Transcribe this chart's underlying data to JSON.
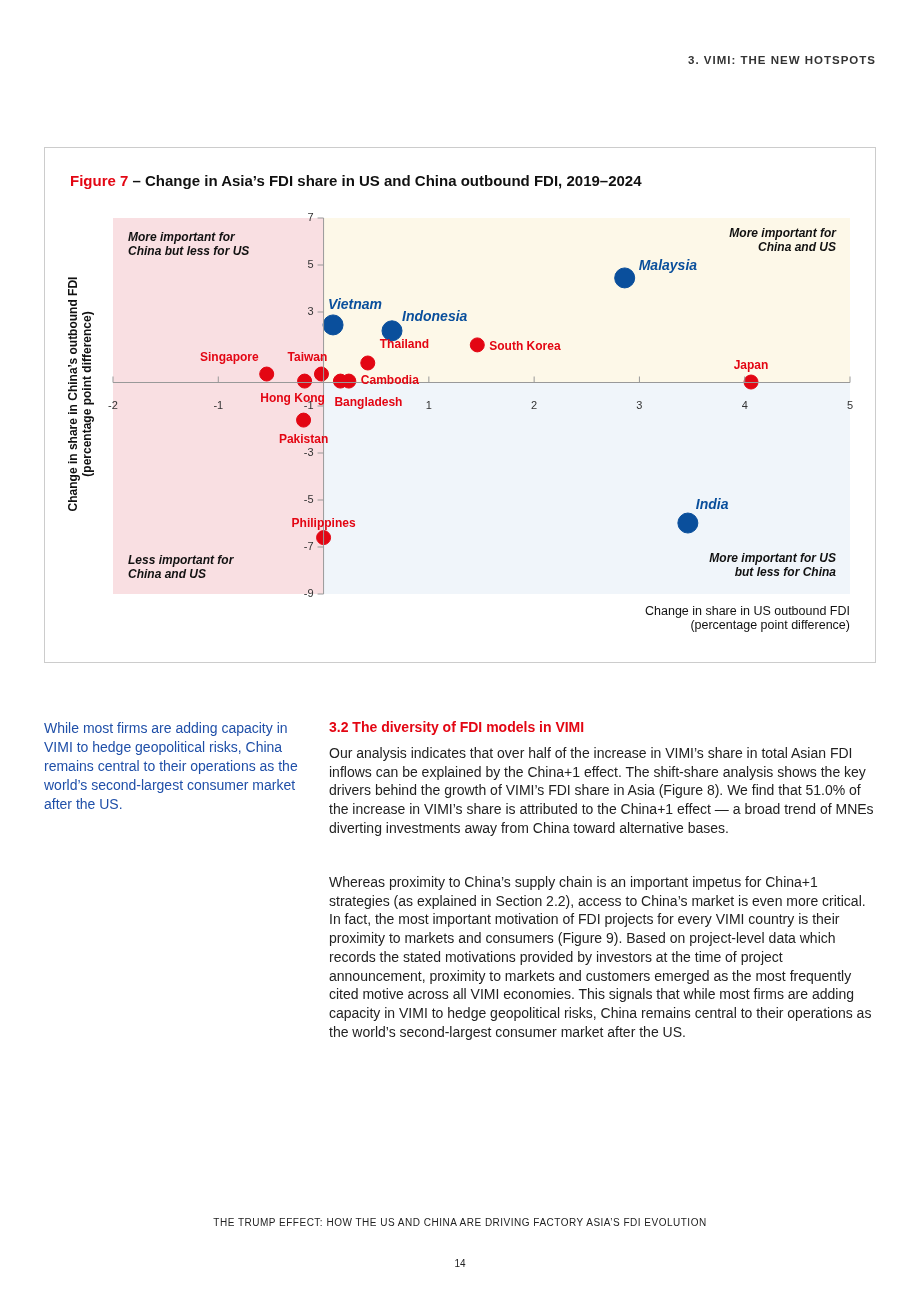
{
  "chart_data": {
    "type": "scatter",
    "title": "Figure 7 – Change in Asia’s FDI share in US and China outbound FDI, 2019–2024",
    "xlabel": "Change in share in US outbound FDI (percentage point difference)",
    "ylabel": "Change in share in China’s outbound FDI (percentage point difference)",
    "marker": "circle",
    "legend": false,
    "xlim": [
      -2,
      5
    ],
    "xticks": [
      -2,
      -1,
      {
        "value": 0,
        "label": null
      },
      1,
      2,
      3,
      4,
      5
    ],
    "ylim": [
      -9,
      7
    ],
    "yticks": [
      -9,
      -7,
      -5,
      -3,
      -1,
      {
        "value": 1,
        "label": null
      },
      3,
      5,
      7
    ],
    "bands": [
      {
        "axis": "y",
        "from": 0,
        "to": 7,
        "color": "#fdf8e8"
      },
      {
        "axis": "y",
        "from": -9,
        "to": 0,
        "color": "#f0f5fa"
      },
      {
        "axis": "x",
        "from": -2,
        "to": 0,
        "color": "#f9dfe2"
      }
    ],
    "series": [
      {
        "color": "#0a4f9c",
        "x": [
          2.86,
          0.09,
          0.65,
          3.46
        ],
        "values": [
          4.45,
          2.45,
          2.2,
          -5.98
        ]
      },
      {
        "color": "#e30613",
        "x": [
          1.46,
          0.42,
          4.06,
          -0.54,
          -0.02,
          -0.18,
          0.24,
          0.16,
          -0.19,
          0.0
        ],
        "values": [
          1.6,
          0.83,
          0.02,
          0.36,
          0.36,
          0.06,
          0.06,
          0.06,
          -1.6,
          -6.6
        ]
      }
    ],
    "annotations": [
      "More important for China but less for US",
      "More important for China and US",
      "Less important for China and US",
      "More important for US but less for China",
      {
        "text": "Malaysia",
        "x": 2.86,
        "y": 4.45
      },
      {
        "text": "Vietnam",
        "x": 0.09,
        "y": 2.45
      },
      {
        "text": "Indonesia",
        "x": 0.65,
        "y": 2.2
      },
      {
        "text": "India",
        "x": 3.46,
        "y": -5.98
      },
      {
        "text": "South Korea",
        "x": 1.46,
        "y": 1.6
      },
      {
        "text": "Thailand",
        "x": 0.42,
        "y": 0.83
      },
      {
        "text": "Japan",
        "x": 4.06,
        "y": 0.02
      },
      {
        "text": "Singapore",
        "x": -0.54,
        "y": 0.36
      },
      {
        "text": "Taiwan",
        "x": -0.02,
        "y": 0.36
      },
      {
        "text": "Hong Kong",
        "x": -0.18,
        "y": 0.06
      },
      {
        "text": "Cambodia",
        "x": 0.24,
        "y": 0.06
      },
      {
        "text": "Bangladesh",
        "x": 0.16,
        "y": 0.06
      },
      {
        "text": "Pakistan",
        "x": -0.19,
        "y": -1.6
      },
      {
        "text": "Philippines",
        "x": 0.0,
        "y": -6.6
      },
      "3. VIMI: THE NEW HOTSPOTS",
      "While most firms are adding capacity in VIMI to hedge geopolitical risks, China remains central to their operations as the world’s second-largest consumer market after the US.",
      "3.2 The diversity of FDI models in VIMI",
      "Our analysis indicates that over half of the increase in VIMI’s share in total Asian FDI inflows can be explained by the China+1 effect. The shift-share analysis shows the key drivers behind the growth of VIMI’s FDI share in Asia (Figure 8). We find that 51.0% of the increase in VIMI’s share is attributed to the China+1 effect — a broad trend of MNEs diverting investments away from China toward alternative bases.",
      "Whereas proximity to China’s supply chain is an important impetus for China+1 strategies (as explained in Section 2.2), access to China’s market is even more critical. In fact, the most important motivation of FDI projects for every VIMI country is their proximity to markets and consumers (Figure 9). Based on project-level data which records the stated motivations provided by investors at the time of project announcement, proximity to markets and customers emerged as the most frequently cited motive across all VIMI economies. This signals that while most firms are adding capacity in VIMI to hedge geopolitical risks, China remains central to their operations as the world’s second-largest consumer market after the US.",
      "THE TRUMP EFFECT: HOW THE US AND CHINA ARE DRIVING FACTORY ASIA’S FDI EVOLUTION",
      "14"
    ]
  }
}
